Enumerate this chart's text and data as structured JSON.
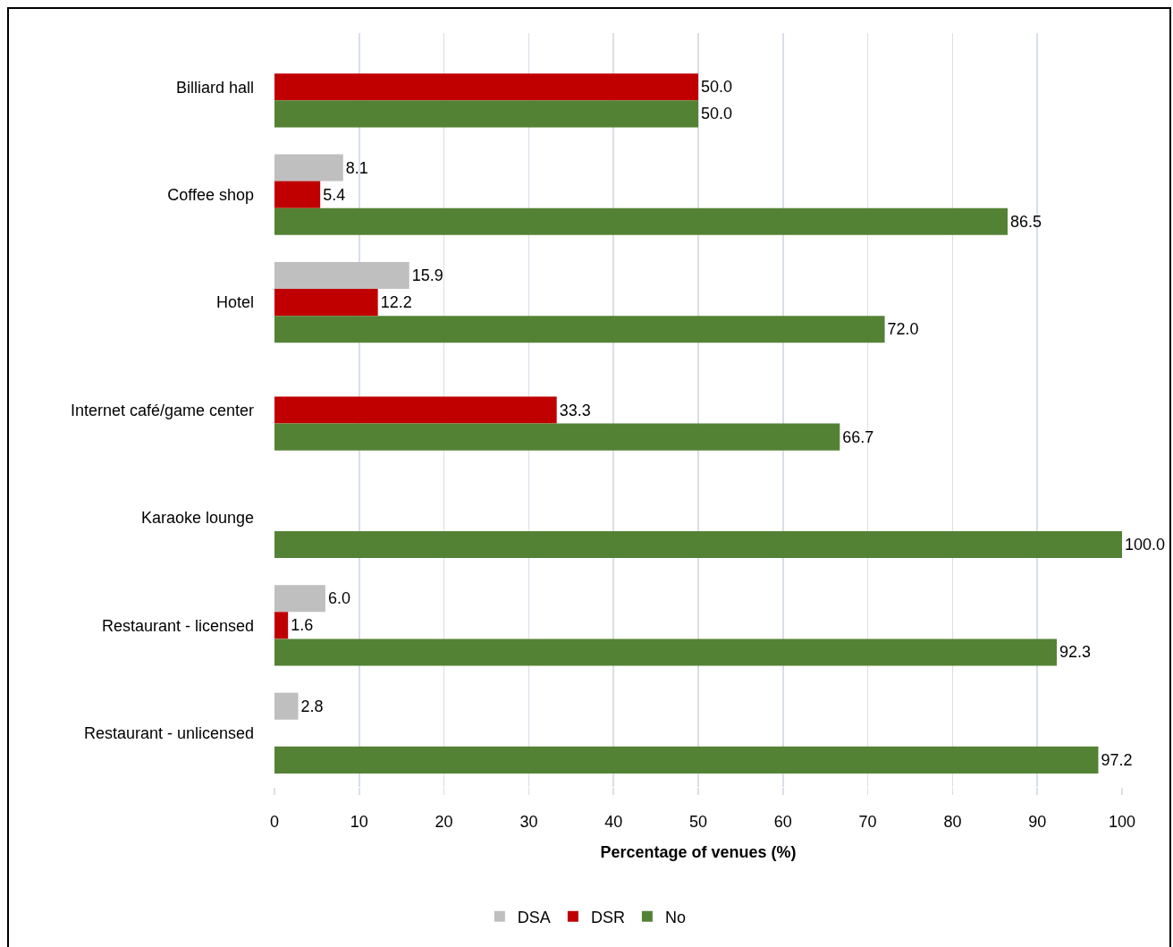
{
  "chart_data": {
    "type": "bar",
    "orientation": "horizontal",
    "categories": [
      "Billiard hall",
      "Coffee shop",
      "Hotel",
      "Internet café/game center",
      "Karaoke lounge",
      "Restaurant - licensed",
      "Restaurant - unlicensed"
    ],
    "series": [
      {
        "name": "DSA",
        "color": "#bfbfbf",
        "values": [
          null,
          8.1,
          15.9,
          null,
          null,
          6.0,
          2.8
        ],
        "value_labels": [
          null,
          "8.1",
          "15.9",
          null,
          null,
          "6.0",
          "2.8"
        ]
      },
      {
        "name": "DSR",
        "color": "#c00000",
        "values": [
          50.0,
          5.4,
          12.2,
          33.3,
          null,
          1.6,
          null
        ],
        "value_labels": [
          "50.0",
          "5.4",
          "12.2",
          "33.3",
          null,
          "1.6",
          null
        ]
      },
      {
        "name": "No",
        "color": "#548235",
        "values": [
          50.0,
          86.5,
          72.0,
          66.7,
          100.0,
          92.3,
          97.2
        ],
        "value_labels": [
          "50.0",
          "86.5",
          "72.0",
          "66.7",
          "100.0",
          "92.3",
          "97.2"
        ]
      }
    ],
    "xlabel": "Percentage of venues (%)",
    "xlim": [
      0,
      100
    ],
    "xticks": [
      0,
      10,
      20,
      30,
      40,
      50,
      60,
      70,
      80,
      90,
      100
    ],
    "grid": "x",
    "legend": "bottom"
  }
}
